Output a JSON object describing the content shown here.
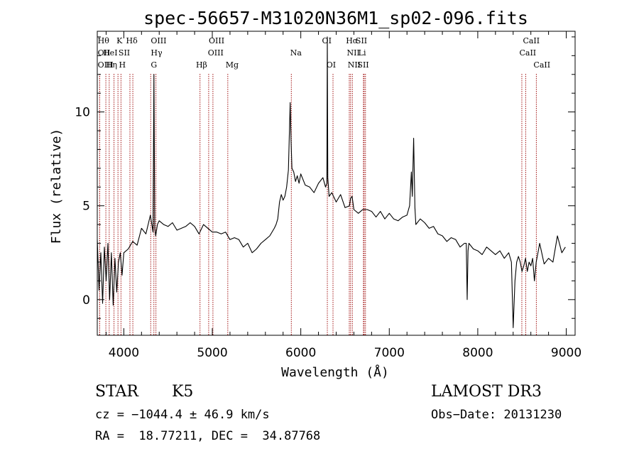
{
  "chart_data": {
    "type": "line",
    "title": "spec-56657-M31020N36M1_sp02-096.fits",
    "xlabel": "Wavelength (Å)",
    "ylabel": "Flux (relative)",
    "xlim": [
      3700,
      9100
    ],
    "ylim": [
      -1.9,
      14.3
    ],
    "x_ticks": [
      4000,
      5000,
      6000,
      7000,
      8000,
      9000
    ],
    "y_ticks": [
      0,
      5,
      10
    ],
    "x_minor_step": 200,
    "y_minor_step": 1,
    "grid": false,
    "legend": "none",
    "line_color": "#000000",
    "marker_color": "#a31515",
    "series": [
      {
        "x": [
          3700,
          3720,
          3740,
          3760,
          3780,
          3800,
          3820,
          3840,
          3860,
          3880,
          3900,
          3920,
          3940,
          3960,
          3980,
          4000,
          4050,
          4100,
          4150,
          4200,
          4250,
          4300,
          4330,
          4340,
          4350,
          4360,
          4380,
          4400,
          4450,
          4500,
          4550,
          4600,
          4650,
          4700,
          4750,
          4800,
          4850,
          4900,
          4950,
          5000,
          5050,
          5100,
          5150,
          5200,
          5250,
          5300,
          5350,
          5400,
          5450,
          5500,
          5550,
          5600,
          5650,
          5700,
          5720,
          5740,
          5760,
          5780,
          5800,
          5820,
          5840,
          5860,
          5880,
          5890,
          5900,
          5920,
          5940,
          5960,
          5980,
          6000,
          6050,
          6100,
          6150,
          6200,
          6250,
          6280,
          6295,
          6300,
          6305,
          6320,
          6350,
          6400,
          6450,
          6500,
          6550,
          6563,
          6580,
          6600,
          6650,
          6700,
          6750,
          6800,
          6850,
          6900,
          6950,
          7000,
          7050,
          7100,
          7150,
          7200,
          7230,
          7250,
          7260,
          7275,
          7290,
          7300,
          7350,
          7400,
          7450,
          7500,
          7550,
          7600,
          7650,
          7700,
          7750,
          7800,
          7850,
          7870,
          7880,
          7890,
          7900,
          7950,
          8000,
          8050,
          8100,
          8150,
          8200,
          8250,
          8300,
          8350,
          8380,
          8400,
          8420,
          8440,
          8460,
          8480,
          8500,
          8520,
          8540,
          8560,
          8580,
          8600,
          8620,
          8640,
          8660,
          8680,
          8700,
          8750,
          8800,
          8850,
          8900,
          8950,
          8990
        ],
        "y": [
          3.2,
          0.5,
          2.5,
          -0.2,
          2.8,
          1.0,
          3.0,
          0.0,
          2.5,
          -0.3,
          2.2,
          0.4,
          2.0,
          2.5,
          1.3,
          2.5,
          2.7,
          3.1,
          2.9,
          3.8,
          3.5,
          4.5,
          3.6,
          12.0,
          3.8,
          3.4,
          4.0,
          4.2,
          4.0,
          3.9,
          4.1,
          3.7,
          3.8,
          3.9,
          4.1,
          3.9,
          3.5,
          4.0,
          3.8,
          3.6,
          3.6,
          3.5,
          3.6,
          3.2,
          3.3,
          3.2,
          2.8,
          3.0,
          2.5,
          2.7,
          3.0,
          3.2,
          3.4,
          3.8,
          4.0,
          4.3,
          5.2,
          5.6,
          5.3,
          5.5,
          6.0,
          6.9,
          10.5,
          8.5,
          7.0,
          6.8,
          6.3,
          6.6,
          6.2,
          6.7,
          6.1,
          6.0,
          5.7,
          6.2,
          6.5,
          6.0,
          6.2,
          14.0,
          6.5,
          5.5,
          5.7,
          5.2,
          5.6,
          4.9,
          5.0,
          5.4,
          5.5,
          4.8,
          4.6,
          4.8,
          4.8,
          4.7,
          4.4,
          4.7,
          4.3,
          4.6,
          4.3,
          4.2,
          4.4,
          4.5,
          5.0,
          6.8,
          5.5,
          8.6,
          4.9,
          4.0,
          4.3,
          4.1,
          3.8,
          3.9,
          3.5,
          3.4,
          3.1,
          3.3,
          3.2,
          2.8,
          3.0,
          3.0,
          0.0,
          2.6,
          3.0,
          2.7,
          2.6,
          2.4,
          2.8,
          2.6,
          2.4,
          2.6,
          2.2,
          2.5,
          2.0,
          -1.5,
          1.0,
          2.0,
          2.3,
          2.0,
          1.5,
          1.8,
          2.2,
          1.5,
          2.0,
          1.8,
          2.2,
          1.0,
          2.0,
          2.5,
          3.0,
          1.9,
          2.2,
          2.0,
          3.4,
          2.5,
          2.8
        ]
      }
    ],
    "line_markers": [
      {
        "label": "Hθ",
        "wave": 3797,
        "row": 1,
        "label_x": 3705
      },
      {
        "label": "OII",
        "wave": 3727,
        "row": 2,
        "label_x": 3705
      },
      {
        "label": "OIII",
        "wave": 3727,
        "row": 3,
        "label_x": 3705
      },
      {
        "label": "K",
        "wave": 3934,
        "row": 1,
        "label_x": 3918
      },
      {
        "label": "HeI",
        "wave": 3889,
        "row": 2,
        "label_x": 3765
      },
      {
        "label": "Hη",
        "wave": 3835,
        "row": 3,
        "label_x": 3795
      },
      {
        "label": "H",
        "wave": 3968,
        "row": 3,
        "label_x": 3945
      },
      {
        "label": "SII",
        "wave": 4069,
        "row": 2,
        "label_x": 3940
      },
      {
        "label": "Hδ",
        "wave": 4102,
        "row": 1,
        "label_x": 4025
      },
      {
        "label": "OIII",
        "wave": 4363,
        "row": 1,
        "label_x": 4305
      },
      {
        "label": "Hγ",
        "wave": 4340,
        "row": 2,
        "label_x": 4305
      },
      {
        "label": "G",
        "wave": 4304,
        "row": 3,
        "label_x": 4305
      },
      {
        "label": "OIII",
        "wave": 4959,
        "row": 1,
        "label_x": 4960
      },
      {
        "label": "OIII",
        "wave": 5007,
        "row": 2,
        "label_x": 4950
      },
      {
        "label": "Hβ",
        "wave": 4861,
        "row": 3,
        "label_x": 4815
      },
      {
        "label": "Mg",
        "wave": 5175,
        "row": 3,
        "label_x": 5150
      },
      {
        "label": "Na",
        "wave": 5893,
        "row": 2,
        "label_x": 5880
      },
      {
        "label": "OI",
        "wave": 6300,
        "row": 1,
        "label_x": 6240
      },
      {
        "label": "OI",
        "wave": 6364,
        "row": 3,
        "label_x": 6290
      },
      {
        "label": "Hα",
        "wave": 6563,
        "row": 1,
        "label_x": 6510
      },
      {
        "label": "NII",
        "wave": 6548,
        "row": 2,
        "label_x": 6520
      },
      {
        "label": "NII",
        "wave": 6583,
        "row": 3,
        "label_x": 6530
      },
      {
        "label": "SII",
        "wave": 6716,
        "row": 1,
        "label_x": 6620
      },
      {
        "label": "Li",
        "wave": 6708,
        "row": 2,
        "label_x": 6650
      },
      {
        "label": "SII",
        "wave": 6731,
        "row": 3,
        "label_x": 6640
      },
      {
        "label": "CaII",
        "wave": 8498,
        "row": 1,
        "label_x": 8510
      },
      {
        "label": "CaII",
        "wave": 8542,
        "row": 2,
        "label_x": 8470
      },
      {
        "label": "CaII",
        "wave": 8662,
        "row": 3,
        "label_x": 8630
      }
    ]
  },
  "info": {
    "object_class": "STAR",
    "subclass": "K5",
    "survey": "LAMOST DR3",
    "redshift": "cz = −1044.4 ± 46.9 km/s",
    "obs_date": "Obs−Date: 20131230",
    "coords": "RA =  18.77211, DEC =  34.87768"
  }
}
